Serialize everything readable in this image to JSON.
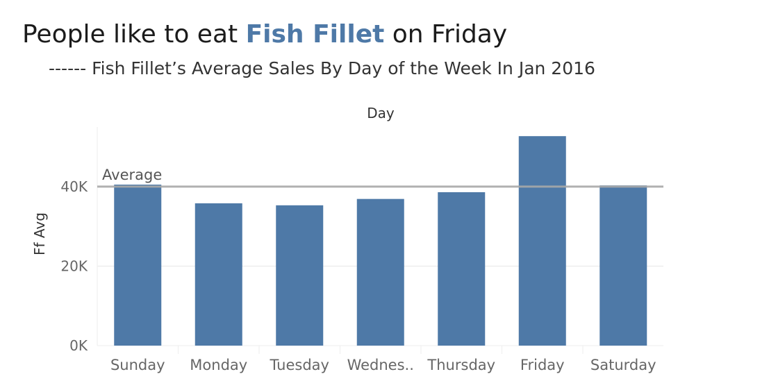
{
  "title": {
    "prefix": "People like to eat ",
    "highlight": "Fish Fillet",
    "suffix": " on Friday"
  },
  "subtitle": "------ Fish Fillet’s Average Sales By Day of the Week In Jan 2016",
  "colors": {
    "bar": "#4e79a7",
    "highlight_text": "#4e79a7",
    "reference_line": "#a9a9a9",
    "grid": "#eeeeee"
  },
  "chart_data": {
    "type": "bar",
    "title": "",
    "xlabel": "Day",
    "ylabel": "Ff Avg",
    "categories": [
      "Sunday",
      "Monday",
      "Tuesday",
      "Wednes..",
      "Thursday",
      "Friday",
      "Saturday"
    ],
    "values": [
      40500,
      35800,
      35300,
      36900,
      38600,
      52700,
      40300
    ],
    "ylim": [
      0,
      55000
    ],
    "yticks": [
      {
        "value": 0,
        "label": "0K"
      },
      {
        "value": 20000,
        "label": "20K"
      },
      {
        "value": 40000,
        "label": "40K"
      }
    ],
    "reference_line": {
      "label": "Average",
      "value": 40000
    },
    "grid": true,
    "legend": "none"
  }
}
